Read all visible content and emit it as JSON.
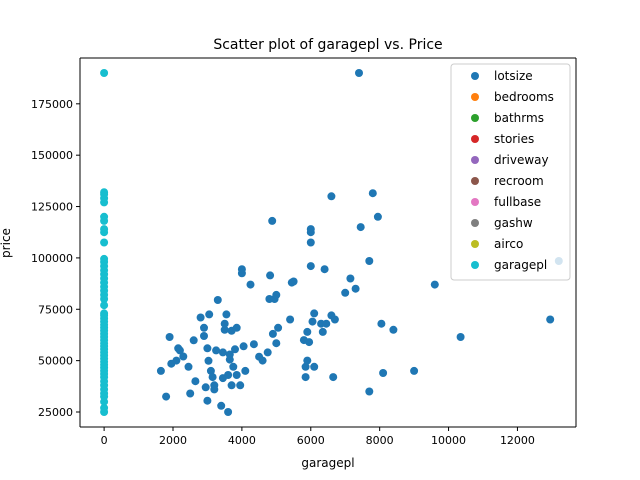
{
  "chart_data": {
    "type": "scatter",
    "title": "Scatter plot of garagepl vs. Price",
    "xlabel": "garagepl",
    "ylabel": "price",
    "xlim": [
      -700,
      13700
    ],
    "ylim": [
      17700,
      197300
    ],
    "xticks": [
      0,
      2000,
      4000,
      6000,
      8000,
      10000,
      12000
    ],
    "yticks": [
      25000,
      50000,
      75000,
      100000,
      125000,
      150000,
      175000
    ],
    "xtick_labels": [
      "0",
      "2000",
      "4000",
      "6000",
      "8000",
      "10000",
      "12000"
    ],
    "ytick_labels": [
      "25000",
      "50000",
      "75000",
      "100000",
      "125000",
      "150000",
      "175000"
    ],
    "grid": false,
    "legend_position": "top-right",
    "series": [
      {
        "name": "lotsize",
        "color": "#1f77b4",
        "points": [
          [
            1650,
            45000
          ],
          [
            1800,
            32500
          ],
          [
            1900,
            61500
          ],
          [
            1950,
            48500
          ],
          [
            2100,
            50000
          ],
          [
            2150,
            56000
          ],
          [
            2200,
            55000
          ],
          [
            2300,
            52000
          ],
          [
            2450,
            47000
          ],
          [
            2500,
            34000
          ],
          [
            2600,
            59900
          ],
          [
            2650,
            40000
          ],
          [
            2800,
            71000
          ],
          [
            2900,
            62000
          ],
          [
            2900,
            66000
          ],
          [
            2950,
            37000
          ],
          [
            3000,
            30500
          ],
          [
            3000,
            56000
          ],
          [
            3030,
            49900
          ],
          [
            3050,
            72500
          ],
          [
            3100,
            45000
          ],
          [
            3150,
            42000
          ],
          [
            3200,
            38000
          ],
          [
            3200,
            36000
          ],
          [
            3250,
            55000
          ],
          [
            3300,
            79500
          ],
          [
            3400,
            28000
          ],
          [
            3450,
            41500
          ],
          [
            3450,
            54000
          ],
          [
            3500,
            68000
          ],
          [
            3500,
            65000
          ],
          [
            3550,
            72500
          ],
          [
            3600,
            43000
          ],
          [
            3600,
            25000
          ],
          [
            3650,
            50500
          ],
          [
            3650,
            53000
          ],
          [
            3700,
            64500
          ],
          [
            3700,
            38000
          ],
          [
            3750,
            47000
          ],
          [
            3800,
            55500
          ],
          [
            3850,
            43000
          ],
          [
            3850,
            66000
          ],
          [
            3950,
            38000
          ],
          [
            4000,
            92500
          ],
          [
            4000,
            94500
          ],
          [
            4050,
            57000
          ],
          [
            4100,
            45000
          ],
          [
            4250,
            87000
          ],
          [
            4350,
            58000
          ],
          [
            4500,
            51900
          ],
          [
            4600,
            50000
          ],
          [
            4750,
            54000
          ],
          [
            4800,
            80000
          ],
          [
            4820,
            91500
          ],
          [
            4880,
            118000
          ],
          [
            4900,
            63000
          ],
          [
            4950,
            80000
          ],
          [
            5000,
            82000
          ],
          [
            5000,
            58500
          ],
          [
            5050,
            66000
          ],
          [
            5400,
            70000
          ],
          [
            5450,
            88000
          ],
          [
            5500,
            88500
          ],
          [
            5800,
            60000
          ],
          [
            5850,
            42000
          ],
          [
            5850,
            47000
          ],
          [
            5900,
            50000
          ],
          [
            5900,
            64000
          ],
          [
            5950,
            59000
          ],
          [
            6000,
            96000
          ],
          [
            6000,
            107500
          ],
          [
            6000,
            112500
          ],
          [
            6000,
            114000
          ],
          [
            6050,
            69000
          ],
          [
            6100,
            73000
          ],
          [
            6100,
            47000
          ],
          [
            6300,
            68000
          ],
          [
            6350,
            64000
          ],
          [
            6400,
            94500
          ],
          [
            6450,
            68000
          ],
          [
            6600,
            72000
          ],
          [
            6600,
            130000
          ],
          [
            6650,
            42000
          ],
          [
            6700,
            70000
          ],
          [
            7000,
            83000
          ],
          [
            7150,
            90000
          ],
          [
            7300,
            85000
          ],
          [
            7400,
            190000
          ],
          [
            7450,
            115000
          ],
          [
            7700,
            98500
          ],
          [
            7700,
            35000
          ],
          [
            7800,
            131500
          ],
          [
            7950,
            120000
          ],
          [
            8050,
            68000
          ],
          [
            8100,
            44000
          ],
          [
            8400,
            65000
          ],
          [
            9000,
            45000
          ],
          [
            9600,
            87000
          ],
          [
            10350,
            61500
          ],
          [
            12950,
            70000
          ],
          [
            13200,
            98500
          ]
        ]
      },
      {
        "name": "bedrooms",
        "color": "#ff7f0e",
        "points": []
      },
      {
        "name": "bathrms",
        "color": "#2ca02c",
        "points": []
      },
      {
        "name": "stories",
        "color": "#d62728",
        "points": []
      },
      {
        "name": "driveway",
        "color": "#9467bd",
        "points": []
      },
      {
        "name": "recroom",
        "color": "#8c564b",
        "points": []
      },
      {
        "name": "fullbase",
        "color": "#e377c2",
        "points": []
      },
      {
        "name": "gashw",
        "color": "#7f7f7f",
        "points": []
      },
      {
        "name": "airco",
        "color": "#bcbd22",
        "points": []
      },
      {
        "name": "garagepl",
        "color": "#17becf",
        "points": [
          [
            0,
            25000
          ],
          [
            0,
            27000
          ],
          [
            0,
            30000
          ],
          [
            0,
            32500
          ],
          [
            0,
            34000
          ],
          [
            0,
            36000
          ],
          [
            0,
            38000
          ],
          [
            0,
            40000
          ],
          [
            0,
            42000
          ],
          [
            0,
            43500
          ],
          [
            0,
            45000
          ],
          [
            0,
            46500
          ],
          [
            0,
            48000
          ],
          [
            0,
            49500
          ],
          [
            0,
            51000
          ],
          [
            0,
            52500
          ],
          [
            0,
            54000
          ],
          [
            0,
            55500
          ],
          [
            0,
            57000
          ],
          [
            0,
            58500
          ],
          [
            0,
            60000
          ],
          [
            0,
            61500
          ],
          [
            0,
            63000
          ],
          [
            0,
            64500
          ],
          [
            0,
            66000
          ],
          [
            0,
            67500
          ],
          [
            0,
            69000
          ],
          [
            0,
            70500
          ],
          [
            0,
            72000
          ],
          [
            0,
            73000
          ],
          [
            0,
            77000
          ],
          [
            0,
            80000
          ],
          [
            0,
            82000
          ],
          [
            0,
            84000
          ],
          [
            0,
            86000
          ],
          [
            0,
            88000
          ],
          [
            0,
            90000
          ],
          [
            0,
            92000
          ],
          [
            0,
            94000
          ],
          [
            0,
            96000
          ],
          [
            0,
            98000
          ],
          [
            0,
            99500
          ],
          [
            0,
            107500
          ],
          [
            0,
            112500
          ],
          [
            0,
            114000
          ],
          [
            0,
            118000
          ],
          [
            0,
            120000
          ],
          [
            0,
            127000
          ],
          [
            0,
            129000
          ],
          [
            0,
            131000
          ],
          [
            0,
            132000
          ],
          [
            0,
            190000
          ]
        ]
      }
    ]
  }
}
